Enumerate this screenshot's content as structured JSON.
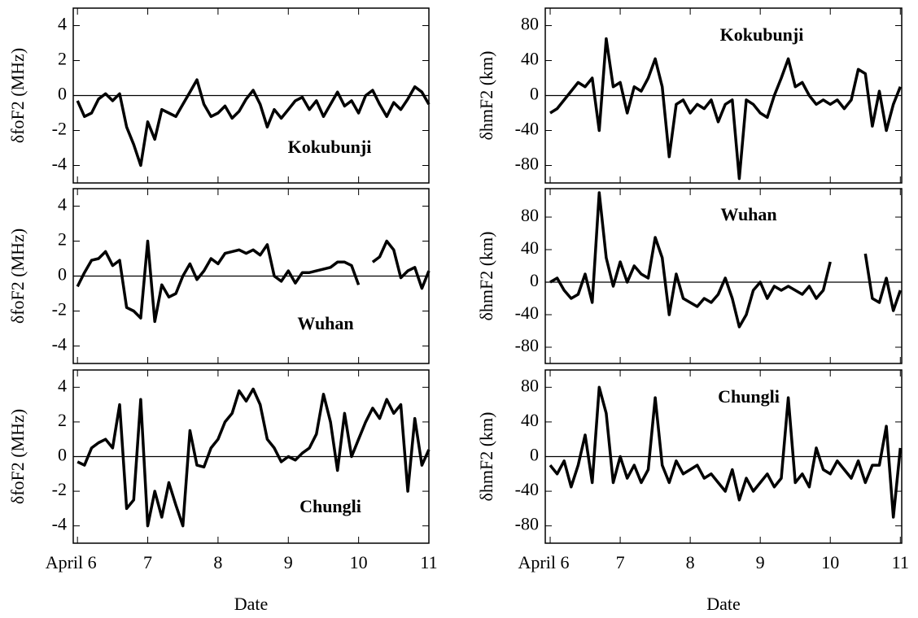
{
  "chart_data": [
    {
      "type": "line",
      "ylabel": "δfoF2 (MHz)",
      "annotation": "Kokubunji",
      "color": "#000000",
      "x": [
        6.0,
        6.1,
        6.2,
        6.3,
        6.4,
        6.5,
        6.6,
        6.7,
        6.8,
        6.9,
        7.0,
        7.1,
        7.2,
        7.3,
        7.4,
        7.5,
        7.6,
        7.7,
        7.8,
        7.9,
        8.0,
        8.1,
        8.2,
        8.3,
        8.4,
        8.5,
        8.6,
        8.7,
        8.8,
        8.9,
        9.0,
        9.1,
        9.2,
        9.3,
        9.4,
        9.5,
        9.6,
        9.7,
        9.8,
        9.9,
        10.0,
        10.1,
        10.2,
        10.3,
        10.4,
        10.5,
        10.6,
        10.7,
        10.8,
        10.9,
        11.0
      ],
      "values": [
        -0.3,
        -1.2,
        -1.0,
        -0.2,
        0.1,
        -0.3,
        0.1,
        -1.8,
        -2.8,
        -4.0,
        -1.5,
        -2.5,
        -0.8,
        -1.0,
        -1.2,
        -0.5,
        0.2,
        0.9,
        -0.5,
        -1.2,
        -1.0,
        -0.6,
        -1.3,
        -0.9,
        -0.2,
        0.3,
        -0.5,
        -1.8,
        -0.8,
        -1.3,
        -0.8,
        -0.3,
        -0.1,
        -0.8,
        -0.3,
        -1.2,
        -0.5,
        0.2,
        -0.6,
        -0.3,
        -1.0,
        0.0,
        0.3,
        -0.5,
        -1.2,
        -0.4,
        -0.8,
        -0.2,
        0.5,
        0.2,
        -0.5
      ],
      "xlim": [
        5.94,
        11.0
      ],
      "ylim": [
        -5,
        5
      ],
      "xticks": [
        6,
        7,
        8,
        9,
        10,
        11
      ],
      "yticks": [
        -4,
        -2,
        0,
        2,
        4
      ]
    },
    {
      "type": "line",
      "ylabel": "δfoF2 (MHz)",
      "annotation": "Wuhan",
      "color": "#000000",
      "x": [
        6.0,
        6.1,
        6.2,
        6.3,
        6.4,
        6.5,
        6.6,
        6.7,
        6.8,
        6.9,
        7.0,
        7.1,
        7.2,
        7.3,
        7.4,
        7.5,
        7.6,
        7.7,
        7.8,
        7.9,
        8.0,
        8.1,
        8.2,
        8.3,
        8.4,
        8.5,
        8.6,
        8.7,
        8.8,
        8.9,
        9.0,
        9.1,
        9.2,
        9.3,
        9.4,
        9.5,
        9.6,
        9.7,
        9.8,
        9.9,
        10.0,
        10.1,
        10.2,
        10.3,
        10.4,
        10.5,
        10.6,
        10.7,
        10.8,
        10.9,
        11.0
      ],
      "values": [
        -0.6,
        0.2,
        0.9,
        1.0,
        1.4,
        0.6,
        0.9,
        -1.8,
        -2.0,
        -2.4,
        2.0,
        -2.6,
        -0.5,
        -1.2,
        -1.0,
        0.0,
        0.7,
        -0.2,
        0.3,
        1.0,
        0.7,
        1.3,
        1.4,
        1.5,
        1.3,
        1.5,
        1.2,
        1.8,
        0.0,
        -0.3,
        0.3,
        -0.4,
        0.2,
        0.2,
        0.3,
        0.4,
        0.5,
        0.8,
        0.8,
        0.6,
        -0.5,
        null,
        0.8,
        1.1,
        2.0,
        1.5,
        -0.1,
        0.3,
        0.5,
        -0.7,
        0.3
      ],
      "xlim": [
        5.94,
        11.0
      ],
      "ylim": [
        -5,
        5
      ],
      "xticks": [
        6,
        7,
        8,
        9,
        10,
        11
      ],
      "yticks": [
        -4,
        -2,
        0,
        2,
        4
      ]
    },
    {
      "type": "line",
      "ylabel": "δfoF2 (MHz)",
      "annotation": "Chungli",
      "xlabel": "Date",
      "color": "#000000",
      "x": [
        6.0,
        6.1,
        6.2,
        6.3,
        6.4,
        6.5,
        6.6,
        6.7,
        6.8,
        6.9,
        7.0,
        7.1,
        7.2,
        7.3,
        7.4,
        7.5,
        7.6,
        7.7,
        7.8,
        7.9,
        8.0,
        8.1,
        8.2,
        8.3,
        8.4,
        8.5,
        8.6,
        8.7,
        8.8,
        8.9,
        9.0,
        9.1,
        9.2,
        9.3,
        9.4,
        9.5,
        9.6,
        9.7,
        9.8,
        9.9,
        10.0,
        10.1,
        10.2,
        10.3,
        10.4,
        10.5,
        10.6,
        10.7,
        10.8,
        10.9,
        11.0
      ],
      "values": [
        -0.3,
        -0.5,
        0.5,
        0.8,
        1.0,
        0.5,
        3.0,
        -3.0,
        -2.5,
        3.3,
        -4.0,
        -2.0,
        -3.5,
        -1.5,
        -2.8,
        -4.0,
        1.5,
        -0.5,
        -0.6,
        0.5,
        1.0,
        2.0,
        2.5,
        3.8,
        3.2,
        3.9,
        3.0,
        1.0,
        0.5,
        -0.3,
        0.0,
        -0.2,
        0.2,
        0.5,
        1.3,
        3.6,
        2.0,
        -0.8,
        2.5,
        0.0,
        1.0,
        2.0,
        2.8,
        2.2,
        3.3,
        2.5,
        3.0,
        -2.0,
        2.2,
        -0.5,
        0.4
      ],
      "xlim": [
        5.94,
        11.0
      ],
      "ylim": [
        -5,
        5
      ],
      "xticks": [
        {
          "value": 6,
          "label": "April 6"
        },
        7,
        8,
        9,
        10,
        11
      ],
      "yticks": [
        -4,
        -2,
        0,
        2,
        4
      ]
    },
    {
      "type": "line",
      "ylabel": "δhmF2 (km)",
      "annotation": "Kokubunji",
      "color": "#000000",
      "x": [
        6.0,
        6.1,
        6.2,
        6.3,
        6.4,
        6.5,
        6.6,
        6.7,
        6.8,
        6.9,
        7.0,
        7.1,
        7.2,
        7.3,
        7.4,
        7.5,
        7.6,
        7.7,
        7.8,
        7.9,
        8.0,
        8.1,
        8.2,
        8.3,
        8.4,
        8.5,
        8.6,
        8.7,
        8.8,
        8.9,
        9.0,
        9.1,
        9.2,
        9.3,
        9.4,
        9.5,
        9.6,
        9.7,
        9.8,
        9.9,
        10.0,
        10.1,
        10.2,
        10.3,
        10.4,
        10.5,
        10.6,
        10.7,
        10.8,
        10.9,
        11.0
      ],
      "values": [
        -20,
        -15,
        -5,
        5,
        15,
        10,
        20,
        -40,
        65,
        10,
        15,
        -20,
        10,
        5,
        20,
        42,
        10,
        -70,
        -10,
        -5,
        -20,
        -10,
        -15,
        -5,
        -30,
        -10,
        -5,
        -95,
        -5,
        -10,
        -20,
        -25,
        0,
        20,
        42,
        10,
        15,
        0,
        -10,
        -5,
        -10,
        -5,
        -15,
        -5,
        30,
        25,
        -35,
        5,
        -40,
        -10,
        10
      ],
      "xlim": [
        5.93,
        11.02
      ],
      "ylim": [
        -100,
        100
      ],
      "xticks": [
        6,
        7,
        8,
        9,
        10,
        11
      ],
      "yticks": [
        -80,
        -40,
        0,
        40,
        80
      ]
    },
    {
      "type": "line",
      "ylabel": "δhmF2 (km)",
      "annotation": "Wuhan",
      "color": "#000000",
      "x": [
        6.0,
        6.1,
        6.2,
        6.3,
        6.4,
        6.5,
        6.6,
        6.7,
        6.8,
        6.9,
        7.0,
        7.1,
        7.2,
        7.3,
        7.4,
        7.5,
        7.6,
        7.7,
        7.8,
        7.9,
        8.0,
        8.1,
        8.2,
        8.3,
        8.4,
        8.5,
        8.6,
        8.7,
        8.8,
        8.9,
        9.0,
        9.1,
        9.2,
        9.3,
        9.4,
        9.5,
        9.6,
        9.7,
        9.8,
        9.9,
        10.0,
        10.1,
        10.2,
        10.3,
        10.4,
        10.5,
        10.6,
        10.7,
        10.8,
        10.9,
        11.0
      ],
      "values": [
        0,
        5,
        -10,
        -20,
        -15,
        10,
        -25,
        110,
        30,
        -5,
        25,
        0,
        20,
        10,
        5,
        55,
        30,
        -40,
        10,
        -20,
        -25,
        -30,
        -20,
        -25,
        -15,
        5,
        -20,
        -55,
        -40,
        -10,
        0,
        -20,
        -5,
        -10,
        -5,
        -10,
        -15,
        -5,
        -20,
        -10,
        25,
        null,
        null,
        null,
        null,
        35,
        -20,
        -25,
        5,
        -35,
        -10
      ],
      "xlim": [
        5.93,
        11.02
      ],
      "ylim": [
        -100,
        115
      ],
      "xticks": [
        6,
        7,
        8,
        9,
        10,
        11
      ],
      "yticks": [
        -80,
        -40,
        0,
        40,
        80
      ]
    },
    {
      "type": "line",
      "ylabel": "δhmF2 (km)",
      "annotation": "Chungli",
      "xlabel": "Date",
      "color": "#000000",
      "x": [
        6.0,
        6.1,
        6.2,
        6.3,
        6.4,
        6.5,
        6.6,
        6.7,
        6.8,
        6.9,
        7.0,
        7.1,
        7.2,
        7.3,
        7.4,
        7.5,
        7.6,
        7.7,
        7.8,
        7.9,
        8.0,
        8.1,
        8.2,
        8.3,
        8.4,
        8.5,
        8.6,
        8.7,
        8.8,
        8.9,
        9.0,
        9.1,
        9.2,
        9.3,
        9.4,
        9.5,
        9.6,
        9.7,
        9.8,
        9.9,
        10.0,
        10.1,
        10.2,
        10.3,
        10.4,
        10.5,
        10.6,
        10.7,
        10.8,
        10.9,
        11.0
      ],
      "values": [
        -10,
        -20,
        -5,
        -35,
        -10,
        25,
        -30,
        80,
        50,
        -30,
        0,
        -25,
        -10,
        -30,
        -15,
        68,
        -10,
        -30,
        -5,
        -20,
        -15,
        -10,
        -25,
        -20,
        -30,
        -40,
        -15,
        -50,
        -25,
        -40,
        -30,
        -20,
        -35,
        -25,
        68,
        -30,
        -20,
        -35,
        10,
        -15,
        -20,
        -5,
        -15,
        -25,
        -5,
        -30,
        -10,
        -10,
        35,
        -70,
        10
      ],
      "xlim": [
        5.93,
        11.02
      ],
      "ylim": [
        -100,
        100
      ],
      "xticks": [
        {
          "value": 6,
          "label": "April 6"
        },
        7,
        8,
        9,
        10,
        11
      ],
      "yticks": [
        -80,
        -40,
        0,
        40,
        80
      ]
    }
  ]
}
